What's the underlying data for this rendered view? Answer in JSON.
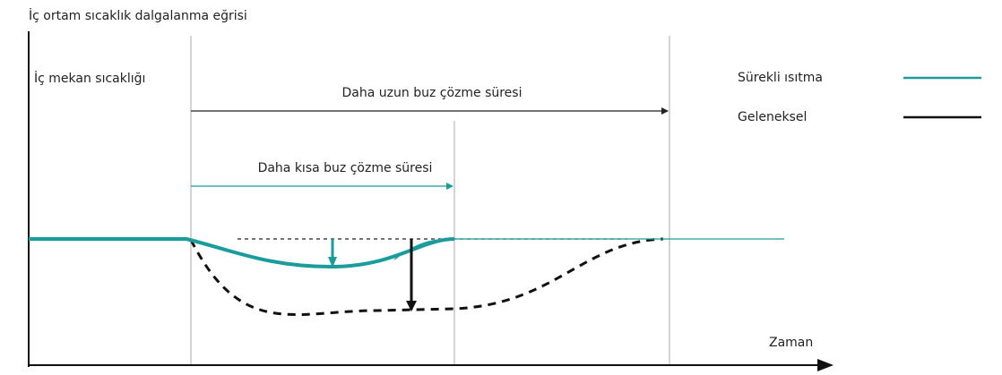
{
  "title": "İç ortam sıcaklık dalgalanma eğrisi",
  "y_axis_label": "İç mekan sıcaklığı",
  "x_axis_label": "Zaman",
  "annotations": {
    "longer": "Daha uzun buz çözme süresi",
    "shorter": "Daha kısa buz çözme süresi"
  },
  "legend": [
    {
      "name": "Sürekli ısıtma"
    },
    {
      "name": "Geleneksel"
    }
  ]
}
